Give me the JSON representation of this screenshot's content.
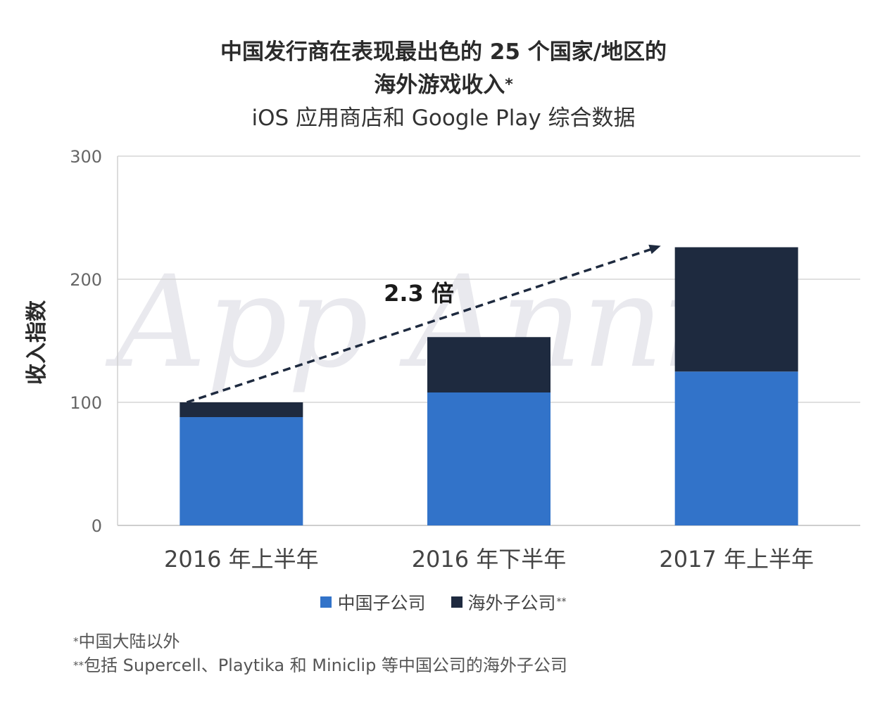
{
  "chart_data": {
    "type": "bar",
    "stacked": true,
    "title_line1": "中国发行商在表现最出色的 25 个国家/地区的",
    "title_line2": "海外游戏收入",
    "title_mark": "*",
    "subtitle": "iOS 应用商店和 Google Play 综合数据",
    "ylabel": "收入指数",
    "ylim": [
      0,
      300
    ],
    "yticks": [
      0,
      100,
      200,
      300
    ],
    "grid": true,
    "categories": [
      "2016 年上半年",
      "2016 年下半年",
      "2017 年上半年"
    ],
    "series": [
      {
        "name": "中国子公司",
        "name_mark": "",
        "color": "#3273c9",
        "values": [
          88,
          108,
          125
        ]
      },
      {
        "name": "海外子公司",
        "name_mark": "**",
        "color": "#1e2a3f",
        "values": [
          12,
          45,
          101
        ]
      }
    ],
    "annotation": {
      "text": "2.3 倍",
      "from": [
        0,
        100
      ],
      "to": [
        2,
        226
      ]
    },
    "legend_position": "bottom",
    "watermark": "App Annie"
  },
  "footnotes": [
    {
      "mark": "*",
      "text": "中国大陆以外"
    },
    {
      "mark": "**",
      "text": "包括 Supercell、Playtika 和 Miniclip 等中国公司的海外子公司"
    }
  ]
}
